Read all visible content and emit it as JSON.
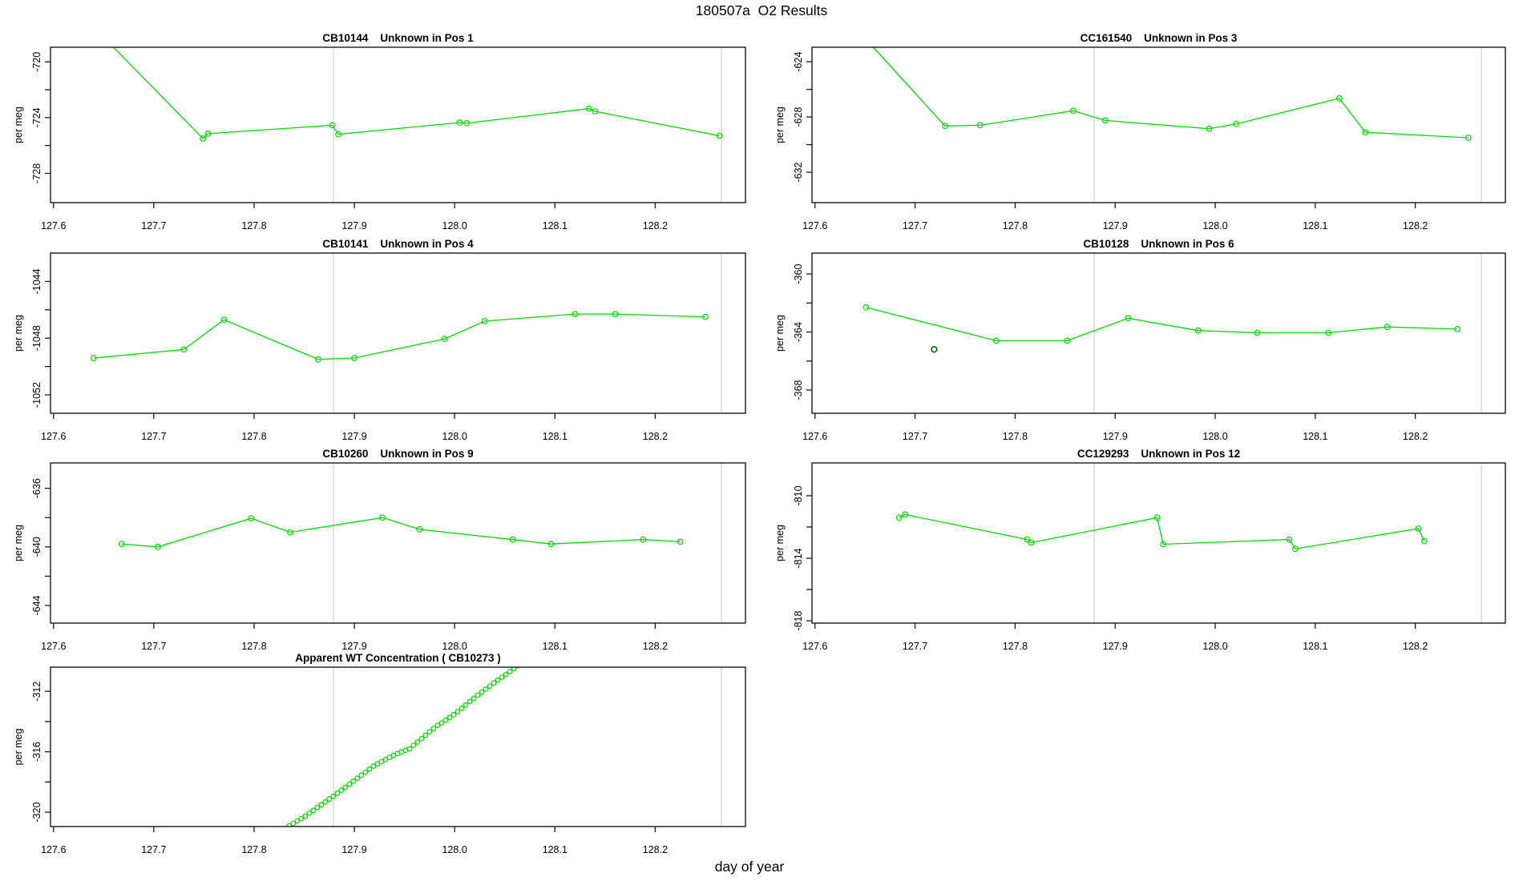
{
  "page": {
    "title": "180507a  O2 Results",
    "xlabel": "day of year"
  },
  "colors": {
    "series": "#00DC00",
    "flagged": "#005400",
    "vline": "#DADADA",
    "axis": "#1A1A1A",
    "text": "#000000",
    "background": "#FFFFFF"
  },
  "x_axis": {
    "lim": [
      127.597,
      128.29
    ],
    "ticks": [
      127.6,
      127.7,
      127.8,
      127.9,
      128.0,
      128.1,
      128.2
    ],
    "tick_labels": [
      "127.6",
      "127.7",
      "127.8",
      "127.9",
      "128.0",
      "128.1",
      "128.2"
    ],
    "vlines": [
      127.879,
      128.266
    ]
  },
  "chart_data": [
    {
      "id": "CB10144",
      "type": "line",
      "title": "CB10144    Unknown in Pos 1",
      "ylabel": "per meg",
      "ylim": [
        -730.1,
        -718.95
      ],
      "yticks_major": [
        -720,
        -724,
        -728
      ],
      "ytick_labels": [
        "-720",
        "-724",
        "-728"
      ],
      "yticks_minor": [
        -722,
        -726
      ],
      "points": [
        [
          127.64,
          -717.5
        ],
        [
          127.749,
          -725.5
        ],
        [
          127.754,
          -725.15
        ],
        [
          127.878,
          -724.55
        ],
        [
          127.884,
          -725.2
        ],
        [
          128.005,
          -724.35
        ],
        [
          128.012,
          -724.4
        ],
        [
          128.134,
          -723.35
        ],
        [
          128.14,
          -723.55
        ],
        [
          128.264,
          -725.3
        ]
      ]
    },
    {
      "id": "CC161540",
      "type": "line",
      "title": "CC161540    Unknown in Pos 3",
      "ylabel": "per meg",
      "ylim": [
        -634.2,
        -622.95
      ],
      "yticks_major": [
        -624,
        -628,
        -632
      ],
      "ytick_labels": [
        "-624",
        "-628",
        "-632"
      ],
      "yticks_minor": [
        -626,
        -630
      ],
      "points": [
        [
          127.65,
          -622.3
        ],
        [
          127.73,
          -628.65
        ],
        [
          127.765,
          -628.6
        ],
        [
          127.858,
          -627.55
        ],
        [
          127.89,
          -628.25
        ],
        [
          127.994,
          -628.85
        ],
        [
          128.021,
          -628.5
        ],
        [
          128.124,
          -626.65
        ],
        [
          128.15,
          -629.1
        ],
        [
          128.253,
          -629.5
        ]
      ]
    },
    {
      "id": "CB10141",
      "type": "line",
      "title": "CB10141    Unknown in Pos 4",
      "ylabel": "per meg",
      "ylim": [
        -1053.3,
        -1042.0
      ],
      "yticks_major": [
        -1044,
        -1048,
        -1052
      ],
      "ytick_labels": [
        "-1044",
        "-1048",
        "-1052"
      ],
      "yticks_minor": [
        -1046,
        -1050
      ],
      "points": [
        [
          127.64,
          -1049.4
        ],
        [
          127.73,
          -1048.8
        ],
        [
          127.77,
          -1046.7
        ],
        [
          127.864,
          -1049.5
        ],
        [
          127.9,
          -1049.4
        ],
        [
          127.99,
          -1048.05
        ],
        [
          128.03,
          -1046.8
        ],
        [
          128.12,
          -1046.3
        ],
        [
          128.16,
          -1046.3
        ],
        [
          128.25,
          -1046.5
        ]
      ]
    },
    {
      "id": "CB10128",
      "type": "line",
      "title": "CB10128    Unknown in Pos 6",
      "ylabel": "per meg",
      "ylim": [
        -369.6,
        -358.56
      ],
      "yticks_major": [
        -360,
        -364,
        -368
      ],
      "ytick_labels": [
        "-360",
        "-364",
        "-368"
      ],
      "yticks_minor": [
        -362,
        -366
      ],
      "points": [
        [
          127.651,
          -362.3
        ],
        [
          127.781,
          -364.6
        ],
        [
          127.852,
          -364.6
        ],
        [
          127.913,
          -363.05
        ],
        [
          127.983,
          -363.9
        ],
        [
          128.042,
          -364.05
        ],
        [
          128.113,
          -364.05
        ],
        [
          128.172,
          -363.65
        ],
        [
          128.242,
          -363.8
        ]
      ],
      "flagged_points": [
        [
          127.719,
          -365.2
        ]
      ]
    },
    {
      "id": "CB10260",
      "type": "line",
      "title": "CB10260    Unknown in Pos 9",
      "ylabel": "per meg",
      "ylim": [
        -645.2,
        -634.27
      ],
      "yticks_major": [
        -636,
        -640,
        -644
      ],
      "ytick_labels": [
        "-636",
        "-640",
        "-644"
      ],
      "yticks_minor": [
        -638,
        -642
      ],
      "points": [
        [
          127.668,
          -639.8
        ],
        [
          127.704,
          -640.0
        ],
        [
          127.797,
          -638.05
        ],
        [
          127.836,
          -639.0
        ],
        [
          127.928,
          -638.0
        ],
        [
          127.965,
          -638.8
        ],
        [
          128.058,
          -639.5
        ],
        [
          128.096,
          -639.8
        ],
        [
          128.188,
          -639.5
        ],
        [
          128.225,
          -639.65
        ]
      ]
    },
    {
      "id": "CC129293",
      "type": "line",
      "title": "CC129293    Unknown in Pos 12",
      "ylabel": "per meg",
      "ylim": [
        -818.15,
        -807.9
      ],
      "yticks_major": [
        -810,
        -814,
        -818
      ],
      "ytick_labels": [
        "-810",
        "-814",
        "-818"
      ],
      "yticks_minor": [
        -812,
        -816
      ],
      "points": [
        [
          127.684,
          -811.4
        ],
        [
          127.69,
          -811.2
        ],
        [
          127.812,
          -812.8
        ],
        [
          127.816,
          -813.0
        ],
        [
          127.942,
          -811.4
        ],
        [
          127.948,
          -813.1
        ],
        [
          128.074,
          -812.8
        ],
        [
          128.08,
          -813.4
        ],
        [
          128.203,
          -812.1
        ],
        [
          128.209,
          -812.9
        ]
      ]
    },
    {
      "id": "CB10273",
      "type": "scatter",
      "title": "Apparent WT Concentration ( CB10273 )",
      "ylabel": "per meg",
      "ylim": [
        -320.95,
        -310.4
      ],
      "yticks_major": [
        -312,
        -316,
        -320
      ],
      "ytick_labels": [
        "-312",
        "-316",
        "-320"
      ],
      "yticks_minor": [
        -314,
        -318
      ],
      "points": [
        [
          127.835,
          -320.9
        ],
        [
          127.839,
          -320.74
        ],
        [
          127.843,
          -320.58
        ],
        [
          127.847,
          -320.42
        ],
        [
          127.851,
          -320.26
        ],
        [
          127.855,
          -320.07
        ],
        [
          127.859,
          -319.88
        ],
        [
          127.863,
          -319.69
        ],
        [
          127.867,
          -319.51
        ],
        [
          127.871,
          -319.32
        ],
        [
          127.875,
          -319.13
        ],
        [
          127.879,
          -318.95
        ],
        [
          127.883,
          -318.75
        ],
        [
          127.887,
          -318.55
        ],
        [
          127.891,
          -318.35
        ],
        [
          127.895,
          -318.15
        ],
        [
          127.899,
          -317.95
        ],
        [
          127.903,
          -317.75
        ],
        [
          127.907,
          -317.55
        ],
        [
          127.911,
          -317.35
        ],
        [
          127.915,
          -317.15
        ],
        [
          127.919,
          -316.95
        ],
        [
          127.923,
          -316.8
        ],
        [
          127.927,
          -316.66
        ],
        [
          127.931,
          -316.52
        ],
        [
          127.935,
          -316.38
        ],
        [
          127.939,
          -316.24
        ],
        [
          127.943,
          -316.12
        ],
        [
          127.947,
          -316.01
        ],
        [
          127.951,
          -315.91
        ],
        [
          127.955,
          -315.8
        ],
        [
          127.959,
          -315.58
        ],
        [
          127.963,
          -315.35
        ],
        [
          127.967,
          -315.13
        ],
        [
          127.971,
          -314.9
        ],
        [
          127.975,
          -314.68
        ],
        [
          127.979,
          -314.46
        ],
        [
          127.983,
          -314.25
        ],
        [
          127.987,
          -314.09
        ],
        [
          127.991,
          -313.91
        ],
        [
          127.995,
          -313.73
        ],
        [
          127.999,
          -313.55
        ],
        [
          128.003,
          -313.34
        ],
        [
          128.007,
          -313.12
        ],
        [
          128.011,
          -312.9
        ],
        [
          128.015,
          -312.68
        ],
        [
          128.019,
          -312.46
        ],
        [
          128.023,
          -312.25
        ],
        [
          128.027,
          -312.05
        ],
        [
          128.031,
          -311.85
        ],
        [
          128.035,
          -311.65
        ],
        [
          128.039,
          -311.45
        ],
        [
          128.043,
          -311.26
        ],
        [
          128.047,
          -311.07
        ],
        [
          128.051,
          -310.88
        ],
        [
          128.055,
          -310.69
        ],
        [
          128.059,
          -310.49
        ],
        [
          128.063,
          -310.3
        ]
      ]
    }
  ]
}
